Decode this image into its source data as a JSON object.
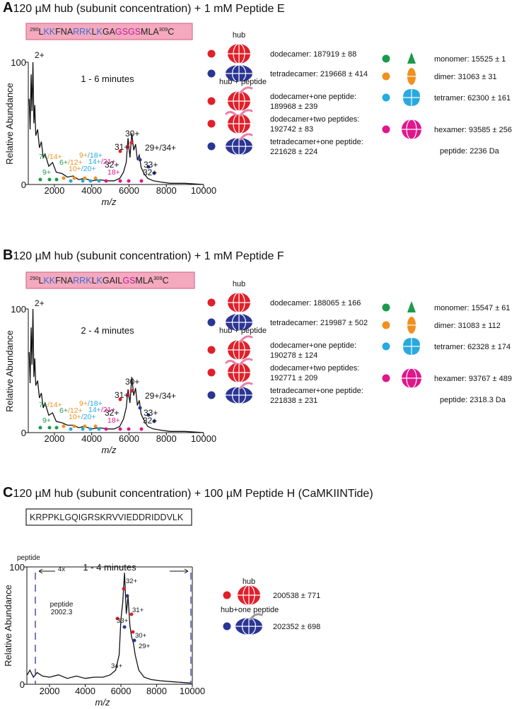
{
  "chart_data": [
    {
      "type": "line",
      "panel_label": "A",
      "title": "120 µM hub (subunit concentration) + 1 mM Peptide E",
      "sequence": [
        {
          "text": "290",
          "sup": true,
          "color": "#222"
        },
        {
          "text": "L",
          "color": "#222"
        },
        {
          "text": "KK",
          "color": "#3c6fd0"
        },
        {
          "text": "FNA",
          "color": "#222"
        },
        {
          "text": "RRK",
          "color": "#3c6fd0"
        },
        {
          "text": "L",
          "color": "#222"
        },
        {
          "text": "K",
          "color": "#3c6fd0"
        },
        {
          "text": "GA",
          "color": "#222"
        },
        {
          "text": "GSGS",
          "color": "#c0209a"
        },
        {
          "text": "MLA",
          "color": "#222"
        },
        {
          "text": "309",
          "sup": true,
          "color": "#222"
        },
        {
          "text": "C",
          "color": "#222"
        }
      ],
      "time_label": "1 - 6 minutes",
      "xlabel": "m/z",
      "ylabel": "Relative Abundance",
      "color": "#111",
      "x": [
        650,
        700,
        750,
        800,
        850,
        900,
        950,
        1000,
        1100,
        1200,
        1300,
        1400,
        1500,
        1700,
        1900,
        2100,
        2400,
        2700,
        3000,
        3300,
        3600,
        4000,
        4400,
        4800,
        5200,
        5500,
        5700,
        5850,
        5950,
        6050,
        6150,
        6250,
        6350,
        6450,
        6550,
        6650,
        6800,
        7000,
        7300,
        7700,
        8200,
        9000,
        10000
      ],
      "values": [
        70,
        45,
        90,
        60,
        100,
        50,
        65,
        40,
        45,
        30,
        35,
        22,
        25,
        15,
        18,
        10,
        9,
        6,
        7,
        4,
        5,
        3,
        4,
        3,
        3,
        5,
        10,
        18,
        38,
        22,
        42,
        28,
        33,
        20,
        24,
        14,
        9,
        5,
        3,
        2,
        1,
        1,
        0
      ],
      "xlim": [
        600,
        10000
      ],
      "ylim": [
        0,
        100
      ],
      "xticks": [
        2000,
        4000,
        6000,
        8000,
        10000
      ],
      "yticks": [
        0,
        100
      ],
      "annotations": [
        [
          {
            "text": "2+",
            "color": "#111"
          }
        ],
        [
          {
            "text": "7+",
            "color": "#1b9a4a"
          },
          {
            "text": "/14+",
            "color": "#f0901f"
          }
        ],
        [
          {
            "text": "6+",
            "color": "#1b9a4a"
          },
          {
            "text": "/12+",
            "color": "#f0901f"
          }
        ],
        [
          {
            "text": "9+",
            "color": "#1b9a4a"
          }
        ],
        [
          {
            "text": "10+",
            "color": "#f0901f"
          },
          {
            "text": "/20+",
            "color": "#27a9e1"
          }
        ],
        [
          {
            "text": "9+",
            "color": "#f0901f"
          },
          {
            "text": "/18+",
            "color": "#27a9e1"
          }
        ],
        [
          {
            "text": "14+",
            "color": "#27a9e1"
          },
          {
            "text": "/21+",
            "color": "#e0168c"
          }
        ],
        [
          {
            "text": "18+",
            "color": "#e0168c"
          }
        ],
        [
          {
            "text": "30+",
            "color": "#111"
          }
        ],
        [
          {
            "text": "31+",
            "color": "#111"
          }
        ],
        [
          {
            "text": "29+/34+",
            "color": "#111"
          }
        ],
        [
          {
            "text": "32+",
            "color": "#111"
          }
        ],
        [
          {
            "text": "33+",
            "color": "#111"
          }
        ],
        [
          {
            "text": "32+",
            "color": "#111"
          }
        ]
      ],
      "legend": [
        {
          "heading": "hub",
          "items": [
            {
              "label": "dodecamer: 187919 ± 88",
              "color": "#e0202a",
              "icon": "dodecamer"
            },
            {
              "label": "tetradecamer: 219668 ± 414",
              "color": "#2b3594",
              "icon": "tetradecamer"
            }
          ]
        },
        {
          "heading": "hub + peptide",
          "items": [
            {
              "label": "dodecamer+one peptide:",
              "label2": "189968 ± 239",
              "color": "#e0202a",
              "icon": "dodecamer+1"
            },
            {
              "label": "dodecamer+two peptides:",
              "label2": "192742 ± 83",
              "color": "#e0202a",
              "icon": "dodecamer+2"
            },
            {
              "label": "tetradecamer+one peptide:",
              "label2": "221628 ± 224",
              "color": "#2b3594",
              "icon": "tetradecamer+1"
            }
          ]
        }
      ],
      "legend2": [
        {
          "label": "monomer: 15525 ± 1",
          "color": "#1b9a4a",
          "icon": "monomer"
        },
        {
          "label": "dimer: 31063 ± 31",
          "color": "#f0901f",
          "icon": "dimer"
        },
        {
          "label": "tetramer: 62300 ± 161",
          "color": "#27a9e1",
          "icon": "tetramer"
        },
        {
          "label": "hexamer: 93585 ± 256",
          "color": "#e0168c",
          "icon": "hexamer"
        }
      ],
      "peptide_mass": "peptide: 2236 Da"
    },
    {
      "type": "line",
      "panel_label": "B",
      "title": "120 µM hub (subunit concentration) + 1 mM Peptide F",
      "sequence": [
        {
          "text": "290",
          "sup": true,
          "color": "#222"
        },
        {
          "text": "L",
          "color": "#222"
        },
        {
          "text": "KK",
          "color": "#3c6fd0"
        },
        {
          "text": "FNA",
          "color": "#222"
        },
        {
          "text": "RRK",
          "color": "#3c6fd0"
        },
        {
          "text": "L",
          "color": "#222"
        },
        {
          "text": "K",
          "color": "#3c6fd0"
        },
        {
          "text": "GAIL",
          "color": "#222"
        },
        {
          "text": "GS",
          "color": "#c0209a"
        },
        {
          "text": "MLA",
          "color": "#222"
        },
        {
          "text": "309",
          "sup": true,
          "color": "#222"
        },
        {
          "text": "C",
          "color": "#222"
        }
      ],
      "time_label": "2 - 4 minutes",
      "xlabel": "m/z",
      "ylabel": "Relative Abundance",
      "color": "#111",
      "x": [
        650,
        700,
        750,
        800,
        850,
        900,
        950,
        1000,
        1100,
        1200,
        1300,
        1400,
        1500,
        1700,
        1900,
        2100,
        2400,
        2700,
        3000,
        3300,
        3600,
        4000,
        4400,
        4800,
        5200,
        5500,
        5700,
        5850,
        5950,
        6050,
        6150,
        6250,
        6350,
        6450,
        6550,
        6650,
        6800,
        7000,
        7300,
        7700,
        8200,
        9000,
        10000
      ],
      "values": [
        65,
        40,
        85,
        55,
        100,
        45,
        60,
        38,
        42,
        28,
        32,
        20,
        24,
        14,
        16,
        9,
        8,
        6,
        6,
        4,
        5,
        3,
        4,
        3,
        3,
        5,
        11,
        20,
        35,
        24,
        45,
        30,
        36,
        22,
        26,
        15,
        10,
        5,
        3,
        2,
        1,
        1,
        0
      ],
      "xlim": [
        600,
        10000
      ],
      "ylim": [
        0,
        100
      ],
      "xticks": [
        2000,
        4000,
        6000,
        8000,
        10000
      ],
      "yticks": [
        0,
        100
      ],
      "annotations": [
        [
          {
            "text": "2+",
            "color": "#111"
          }
        ],
        [
          {
            "text": "7+",
            "color": "#1b9a4a"
          },
          {
            "text": "/14+",
            "color": "#f0901f"
          }
        ],
        [
          {
            "text": "6+",
            "color": "#1b9a4a"
          },
          {
            "text": "/12+",
            "color": "#f0901f"
          }
        ],
        [
          {
            "text": "9+",
            "color": "#1b9a4a"
          }
        ],
        [
          {
            "text": "10+",
            "color": "#f0901f"
          },
          {
            "text": "/20+",
            "color": "#27a9e1"
          }
        ],
        [
          {
            "text": "9+",
            "color": "#f0901f"
          },
          {
            "text": "/18+",
            "color": "#27a9e1"
          }
        ],
        [
          {
            "text": "14+",
            "color": "#27a9e1"
          },
          {
            "text": "/21+",
            "color": "#e0168c"
          }
        ],
        [
          {
            "text": "18+",
            "color": "#e0168c"
          }
        ],
        [
          {
            "text": "30+",
            "color": "#111"
          }
        ],
        [
          {
            "text": "31+",
            "color": "#111"
          }
        ],
        [
          {
            "text": "29+/34+",
            "color": "#111"
          }
        ],
        [
          {
            "text": "32+",
            "color": "#111"
          }
        ],
        [
          {
            "text": "33+",
            "color": "#111"
          }
        ],
        [
          {
            "text": "32+",
            "color": "#111"
          }
        ]
      ],
      "legend": [
        {
          "heading": "hub",
          "items": [
            {
              "label": "dodecamer: 188065 ± 166",
              "color": "#e0202a",
              "icon": "dodecamer"
            },
            {
              "label": "tetradecamer: 219987 ± 502",
              "color": "#2b3594",
              "icon": "tetradecamer"
            }
          ]
        },
        {
          "heading": "hub + peptide",
          "items": [
            {
              "label": "dodecamer+one peptide:",
              "label2": "190278 ± 124",
              "color": "#e0202a",
              "icon": "dodecamer+1"
            },
            {
              "label": "dodecamer+two peptides:",
              "label2": "192771 ± 209",
              "color": "#e0202a",
              "icon": "dodecamer+2"
            },
            {
              "label": "tetradecamer+one peptide:",
              "label2": "221838 ± 231",
              "color": "#2b3594",
              "icon": "tetradecamer+1"
            }
          ]
        }
      ],
      "legend2": [
        {
          "label": "monomer: 15547 ± 61",
          "color": "#1b9a4a",
          "icon": "monomer"
        },
        {
          "label": "dimer: 31083 ± 112",
          "color": "#f0901f",
          "icon": "dimer"
        },
        {
          "label": "tetramer: 62328 ± 174",
          "color": "#27a9e1",
          "icon": "tetramer"
        },
        {
          "label": "hexamer: 93767 ± 489",
          "color": "#e0168c",
          "icon": "hexamer"
        }
      ],
      "peptide_mass": "peptide: 2318.3 Da"
    },
    {
      "type": "line",
      "panel_label": "C",
      "title": "120 µM hub (subunit concentration) + 100 µM Peptide H (CaMKIINTide)",
      "sequence": [
        {
          "text": "KRPPKLGQIGRSKRVVIEDDRIDDVLK",
          "color": "#222"
        }
      ],
      "time_label": "1 - 4 minutes",
      "xlabel": "m/z",
      "ylabel": "Relative Abundance",
      "color": "#111",
      "x": [
        750,
        900,
        1100,
        1300,
        1600,
        2000,
        2500,
        3000,
        3500,
        4000,
        4500,
        5000,
        5400,
        5700,
        5900,
        6000,
        6100,
        6200,
        6300,
        6400,
        6500,
        6600,
        6700,
        6800,
        7000,
        7300,
        7700,
        8200,
        9000,
        9900
      ],
      "values": [
        8,
        12,
        6,
        10,
        7,
        6,
        8,
        5,
        7,
        5,
        6,
        6,
        8,
        12,
        25,
        55,
        70,
        95,
        60,
        75,
        50,
        40,
        35,
        25,
        12,
        6,
        4,
        3,
        2,
        1
      ],
      "xlim": [
        730,
        10000
      ],
      "ylim": [
        0,
        100
      ],
      "xticks": [
        2000,
        4000,
        6000,
        8000,
        10000
      ],
      "yticks": [
        0,
        100
      ],
      "annotations": [
        [
          {
            "text": "32+",
            "color": "#111"
          }
        ],
        [
          {
            "text": "31+",
            "color": "#111"
          }
        ],
        [
          {
            "text": "33+",
            "color": "#111"
          }
        ],
        [
          {
            "text": "30+",
            "color": "#111"
          }
        ],
        [
          {
            "text": "29+",
            "color": "#111"
          }
        ],
        [
          {
            "text": "34+",
            "color": "#111"
          }
        ],
        [
          {
            "text": "peptide",
            "color": "#111"
          }
        ],
        [
          {
            "text": "4x",
            "color": "#111"
          }
        ],
        [
          {
            "text": "peptide",
            "color": "#111"
          }
        ],
        [
          {
            "text": "2002.3",
            "color": "#111"
          }
        ]
      ],
      "legend": [
        {
          "heading": "hub",
          "items": [
            {
              "label": "200538 ± 771",
              "color": "#e0202a",
              "icon": "dodecamer"
            }
          ]
        },
        {
          "heading": "hub+one peptide",
          "items": [
            {
              "label": "202352 ± 698",
              "color": "#2b3594",
              "icon": "tetradecamer+1"
            }
          ]
        }
      ]
    }
  ]
}
